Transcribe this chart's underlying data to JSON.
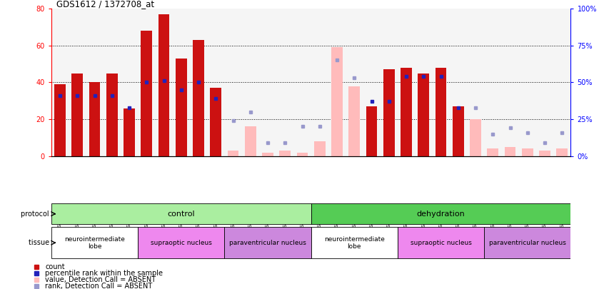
{
  "title": "GDS1612 / 1372708_at",
  "samples": [
    "GSM69787",
    "GSM69788",
    "GSM69789",
    "GSM69790",
    "GSM69791",
    "GSM69461",
    "GSM69462",
    "GSM69463",
    "GSM69464",
    "GSM69465",
    "GSM69475",
    "GSM69476",
    "GSM69477",
    "GSM69478",
    "GSM69479",
    "GSM69782",
    "GSM69783",
    "GSM69784",
    "GSM69785",
    "GSM69786",
    "GSM69268",
    "GSM69457",
    "GSM69458",
    "GSM69459",
    "GSM69460",
    "GSM69470",
    "GSM69471",
    "GSM69472",
    "GSM69473",
    "GSM69474"
  ],
  "count_vals": [
    39,
    45,
    40,
    45,
    26,
    68,
    77,
    53,
    63,
    37,
    3,
    16,
    2,
    3,
    2,
    8,
    59,
    38,
    27,
    47,
    48,
    45,
    48,
    27,
    20,
    4,
    5,
    4,
    3,
    4
  ],
  "rank_vals": [
    41,
    41,
    41,
    41,
    33,
    50,
    51,
    45,
    50,
    39,
    24,
    30,
    9,
    9,
    20,
    20,
    65,
    53,
    37,
    37,
    54,
    54,
    54,
    33,
    33,
    15,
    19,
    16,
    9,
    16
  ],
  "is_absent": [
    false,
    false,
    false,
    false,
    false,
    false,
    false,
    false,
    false,
    false,
    true,
    true,
    true,
    true,
    true,
    true,
    true,
    true,
    false,
    false,
    false,
    false,
    false,
    false,
    true,
    true,
    true,
    true,
    true,
    true
  ],
  "has_rank_present": [
    true,
    false,
    true,
    false,
    true,
    true,
    true,
    true,
    true,
    true,
    false,
    false,
    false,
    false,
    false,
    false,
    false,
    true,
    true,
    false,
    true,
    false,
    true,
    false,
    false,
    false,
    false,
    false,
    false,
    false
  ],
  "protocol_groups": [
    {
      "label": "control",
      "start": 0,
      "end": 15,
      "color": "#aaeea0"
    },
    {
      "label": "dehydration",
      "start": 15,
      "end": 30,
      "color": "#55cc55"
    }
  ],
  "tissue_groups": [
    {
      "label": "neurointermediate\nlobe",
      "start": 0,
      "end": 5,
      "color": "#ffffff"
    },
    {
      "label": "supraoptic nucleus",
      "start": 5,
      "end": 10,
      "color": "#ee88ee"
    },
    {
      "label": "paraventricular nucleus",
      "start": 10,
      "end": 15,
      "color": "#cc88dd"
    },
    {
      "label": "neurointermediate\nlobe",
      "start": 15,
      "end": 20,
      "color": "#ffffff"
    },
    {
      "label": "supraoptic nucleus",
      "start": 20,
      "end": 25,
      "color": "#ee88ee"
    },
    {
      "label": "paraventricular nucleus",
      "start": 25,
      "end": 30,
      "color": "#cc88dd"
    }
  ],
  "ylim_left": [
    0,
    80
  ],
  "ylim_right": [
    0,
    100
  ],
  "yticks_left": [
    0,
    20,
    40,
    60,
    80
  ],
  "yticks_right": [
    0,
    25,
    50,
    75,
    100
  ],
  "bar_color_present": "#cc1111",
  "bar_color_absent": "#ffbbbb",
  "rank_color_present": "#2222bb",
  "rank_color_absent": "#9999cc"
}
